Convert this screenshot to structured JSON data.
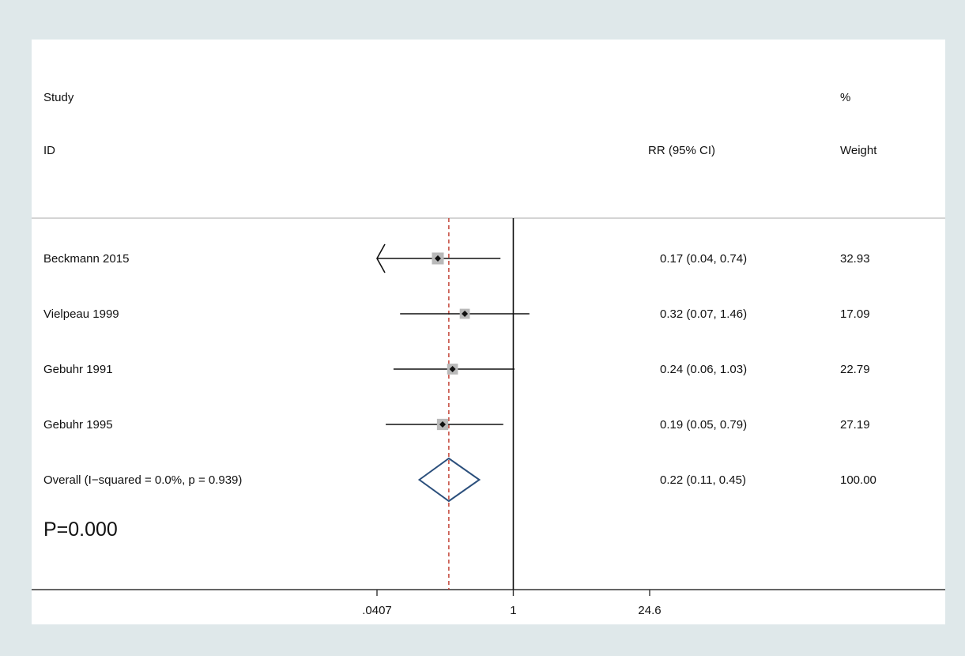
{
  "chart_data": {
    "type": "forest",
    "scale": "log",
    "headers": {
      "study_top": "Study",
      "study_bottom": "ID",
      "effect": "RR (95% CI)",
      "weight_top": "%",
      "weight_bottom": "Weight"
    },
    "studies": [
      {
        "label": "Beckmann 2015",
        "rr": 0.17,
        "lower": 0.04,
        "upper": 0.74,
        "ci_text": "0.17 (0.04, 0.74)",
        "weight": 32.93,
        "weight_text": "32.93",
        "truncated_lower": true
      },
      {
        "label": "Vielpeau 1999",
        "rr": 0.32,
        "lower": 0.07,
        "upper": 1.46,
        "ci_text": "0.32 (0.07, 1.46)",
        "weight": 17.09,
        "weight_text": "17.09",
        "truncated_lower": false
      },
      {
        "label": "Gebuhr 1991",
        "rr": 0.24,
        "lower": 0.06,
        "upper": 1.03,
        "ci_text": "0.24 (0.06, 1.03)",
        "weight": 22.79,
        "weight_text": "22.79",
        "truncated_lower": false
      },
      {
        "label": "Gebuhr 1995",
        "rr": 0.19,
        "lower": 0.05,
        "upper": 0.79,
        "ci_text": "0.19 (0.05, 0.79)",
        "weight": 27.19,
        "weight_text": "27.19",
        "truncated_lower": false
      }
    ],
    "overall": {
      "label": "Overall  (I−squared = 0.0%, p = 0.939)",
      "rr": 0.22,
      "lower": 0.11,
      "upper": 0.45,
      "ci_text": "0.22 (0.11, 0.45)",
      "weight_text": "100.00"
    },
    "p_value_text": "P=0.000",
    "x_ticks": [
      {
        "value": 0.0407,
        "label": ".0407"
      },
      {
        "value": 1,
        "label": "1"
      },
      {
        "value": 24.6,
        "label": "24.6"
      }
    ],
    "xlim": [
      0.0407,
      24.6
    ],
    "null_line": 1,
    "colors": {
      "overall_diamond": "#2b4f7c",
      "pooled_line": "#c0392b",
      "weight_box": "#b9b9b9",
      "text": "#111111",
      "background": "#dfe8ea"
    }
  }
}
